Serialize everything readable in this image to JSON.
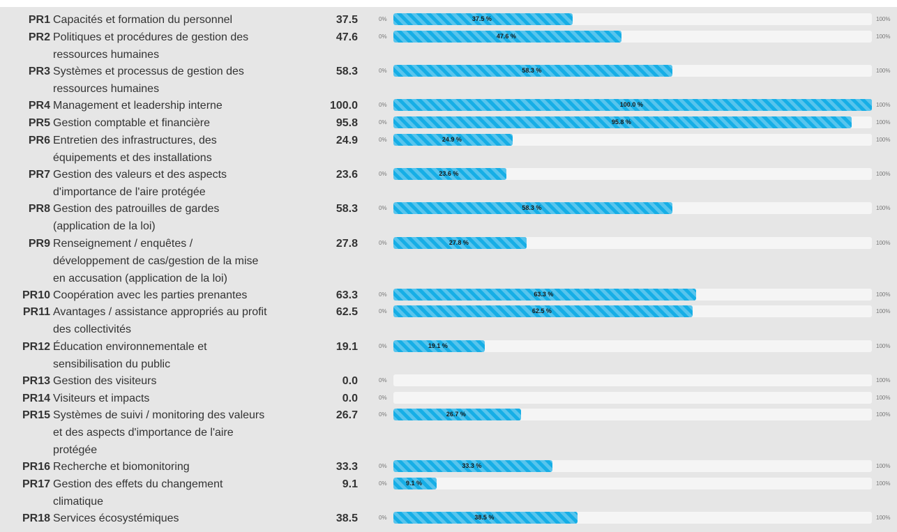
{
  "chart_data": {
    "type": "bar",
    "orientation": "horizontal",
    "axis_min_label": "0%",
    "axis_max_label": "100%",
    "xlim": [
      0,
      100
    ],
    "colors": {
      "bar": "#16aee6",
      "track": "#f5f5f5",
      "panel": "#e6e6e6"
    },
    "rows": [
      {
        "code": "PR1",
        "lines": [
          "Capacités et formation du personnel"
        ],
        "value": 37.5,
        "value_text": "37.5",
        "bar_label": "37.5 %"
      },
      {
        "code": "PR2",
        "lines": [
          "Politiques et procédures de gestion des",
          "ressources humaines"
        ],
        "value": 47.6,
        "value_text": "47.6",
        "bar_label": "47.6 %"
      },
      {
        "code": "PR3",
        "lines": [
          "Systèmes et processus de gestion des",
          "ressources humaines"
        ],
        "value": 58.3,
        "value_text": "58.3",
        "bar_label": "58.3 %"
      },
      {
        "code": "PR4",
        "lines": [
          "Management et leadership interne"
        ],
        "value": 100.0,
        "value_text": "100.0",
        "bar_label": "100.0 %"
      },
      {
        "code": "PR5",
        "lines": [
          "Gestion comptable et financière"
        ],
        "value": 95.8,
        "value_text": "95.8",
        "bar_label": "95.8 %"
      },
      {
        "code": "PR6",
        "lines": [
          "Entretien des infrastructures, des",
          "équipements et des installations"
        ],
        "value": 24.9,
        "value_text": "24.9",
        "bar_label": "24.9 %"
      },
      {
        "code": "PR7",
        "lines": [
          "Gestion des valeurs et des aspects",
          "d'importance de l'aire protégée"
        ],
        "value": 23.6,
        "value_text": "23.6",
        "bar_label": "23.6 %"
      },
      {
        "code": "PR8",
        "lines": [
          "Gestion des patrouilles de gardes",
          "(application de la loi)"
        ],
        "value": 58.3,
        "value_text": "58.3",
        "bar_label": "58.3 %"
      },
      {
        "code": "PR9",
        "lines": [
          "Renseignement / enquêtes /",
          "développement de cas/gestion de la mise",
          "en accusation (application de la loi)"
        ],
        "value": 27.8,
        "value_text": "27.8",
        "bar_label": "27.8 %"
      },
      {
        "code": "PR10",
        "lines": [
          "Coopération avec les parties prenantes"
        ],
        "value": 63.3,
        "value_text": "63.3",
        "bar_label": "63.3 %"
      },
      {
        "code": "PR11",
        "lines": [
          "Avantages / assistance appropriés au profit",
          "des collectivités"
        ],
        "value": 62.5,
        "value_text": "62.5",
        "bar_label": "62.5 %"
      },
      {
        "code": "PR12",
        "lines": [
          "Éducation environnementale et",
          "sensibilisation du public"
        ],
        "value": 19.1,
        "value_text": "19.1",
        "bar_label": "19.1 %"
      },
      {
        "code": "PR13",
        "lines": [
          "Gestion des visiteurs"
        ],
        "value": 0.0,
        "value_text": "0.0",
        "bar_label": ""
      },
      {
        "code": "PR14",
        "lines": [
          "Visiteurs et impacts"
        ],
        "value": 0.0,
        "value_text": "0.0",
        "bar_label": ""
      },
      {
        "code": "PR15",
        "lines": [
          "Systèmes de suivi / monitoring des valeurs",
          "et des aspects d'importance de l'aire",
          "protégée"
        ],
        "value": 26.7,
        "value_text": "26.7",
        "bar_label": "26.7 %"
      },
      {
        "code": "PR16",
        "lines": [
          "Recherche et biomonitoring"
        ],
        "value": 33.3,
        "value_text": "33.3",
        "bar_label": "33.3 %"
      },
      {
        "code": "PR17",
        "lines": [
          "Gestion des effets du changement",
          "climatique"
        ],
        "value": 9.1,
        "value_text": "9.1",
        "bar_label": "9.1 %"
      },
      {
        "code": "PR18",
        "lines": [
          "Services écosystémiques"
        ],
        "value": 38.5,
        "value_text": "38.5",
        "bar_label": "38.5 %"
      }
    ]
  }
}
